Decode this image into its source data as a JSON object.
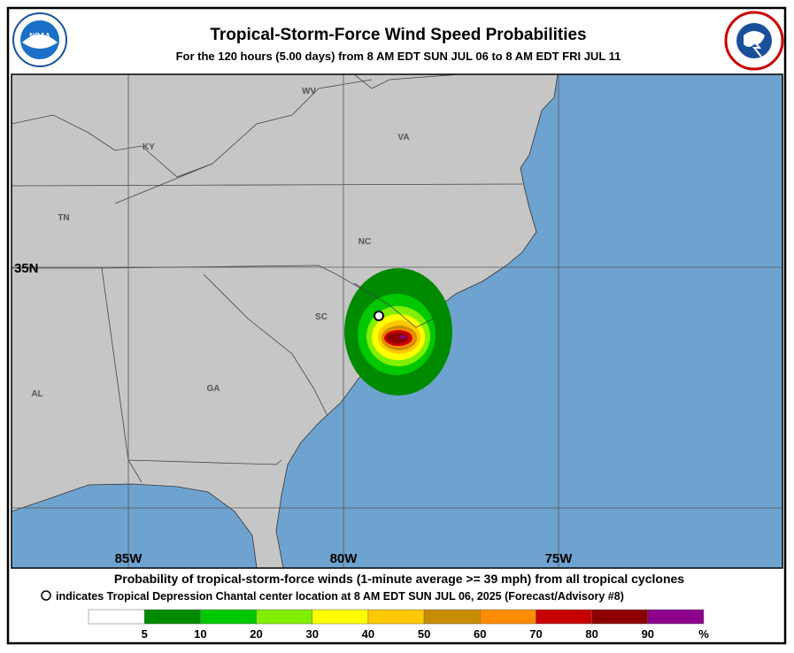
{
  "header": {
    "title": "Tropical-Storm-Force Wind Speed Probabilities",
    "subtitle": "For the 120 hours (5.00 days) from 8 AM EDT SUN JUL 06 to 8 AM EDT FRI JUL 11"
  },
  "map": {
    "state_labels": [
      "WV",
      "KY",
      "VA",
      "TN",
      "NC",
      "SC",
      "GA",
      "AL"
    ],
    "lat_labels": [
      "35N"
    ],
    "lon_labels": [
      "85W",
      "80W",
      "75W"
    ]
  },
  "footer": {
    "line1": "Probability of tropical-storm-force winds (1-minute average >= 39 mph) from all tropical cyclones",
    "line2": "indicates Tropical Depression Chantal center location at 8 AM EDT SUN JUL 06, 2025 (Forecast/Advisory #8)"
  },
  "legend": {
    "labels": [
      "5",
      "10",
      "20",
      "30",
      "40",
      "50",
      "60",
      "70",
      "80",
      "90"
    ],
    "unit": "%",
    "colors": [
      "#ffffff",
      "#008a00",
      "#00c800",
      "#80f000",
      "#ffff00",
      "#ffc800",
      "#c88c00",
      "#ff8c00",
      "#c80000",
      "#8c0000",
      "#8c008c"
    ]
  }
}
